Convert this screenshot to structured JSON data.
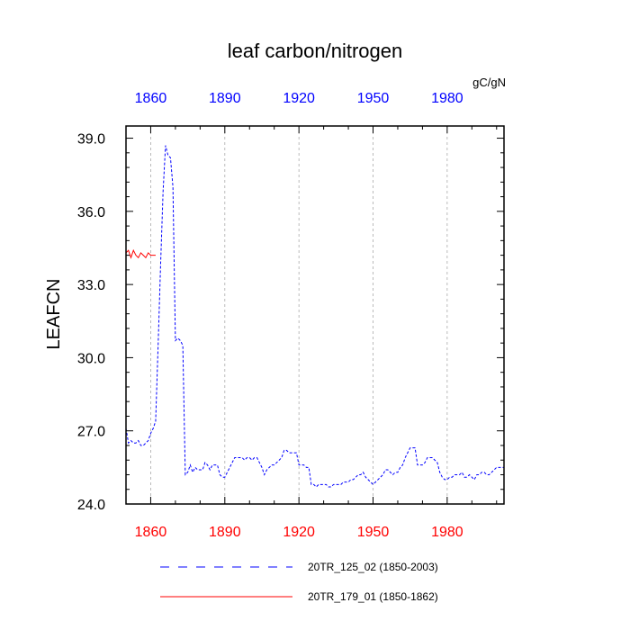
{
  "chart_data": {
    "type": "line",
    "title": "leaf carbon/nitrogen",
    "units": "gC/gN",
    "ylabel": "LEAFCN",
    "xlabel": "",
    "xlim": [
      1850,
      2003
    ],
    "ylim": [
      24.0,
      39.5
    ],
    "x_ticks": [
      1860,
      1890,
      1920,
      1950,
      1980
    ],
    "x_tick_labels": [
      "1860",
      "1890",
      "1920",
      "1950",
      "1980"
    ],
    "y_ticks": [
      24.0,
      27.0,
      30.0,
      33.0,
      36.0,
      39.0
    ],
    "y_tick_labels": [
      "24.0",
      "27.0",
      "30.0",
      "33.0",
      "36.0",
      "39.0"
    ],
    "grid": "vertical-dashed",
    "legend_position": "bottom",
    "series": [
      {
        "name": "20TR_125_02 (1850-2003)",
        "color": "#0000ff",
        "dash": "dashed",
        "x": [
          1850,
          1851,
          1852,
          1853,
          1854,
          1855,
          1856,
          1857,
          1858,
          1859,
          1860,
          1861,
          1862,
          1863,
          1864,
          1865,
          1866,
          1867,
          1868,
          1869,
          1870,
          1871,
          1872,
          1873,
          1874,
          1875,
          1876,
          1877,
          1878,
          1879,
          1880,
          1881,
          1882,
          1883,
          1884,
          1885,
          1886,
          1887,
          1888,
          1889,
          1890,
          1891,
          1892,
          1893,
          1894,
          1895,
          1896,
          1897,
          1898,
          1899,
          1900,
          1901,
          1902,
          1903,
          1904,
          1905,
          1906,
          1907,
          1908,
          1909,
          1910,
          1911,
          1912,
          1913,
          1914,
          1915,
          1916,
          1917,
          1918,
          1919,
          1920,
          1921,
          1922,
          1923,
          1924,
          1925,
          1926,
          1927,
          1928,
          1929,
          1930,
          1931,
          1932,
          1933,
          1934,
          1935,
          1936,
          1937,
          1938,
          1939,
          1940,
          1941,
          1942,
          1943,
          1944,
          1945,
          1946,
          1947,
          1948,
          1949,
          1950,
          1951,
          1952,
          1953,
          1954,
          1955,
          1956,
          1957,
          1958,
          1959,
          1960,
          1961,
          1962,
          1963,
          1964,
          1965,
          1966,
          1967,
          1968,
          1969,
          1970,
          1971,
          1972,
          1973,
          1974,
          1975,
          1976,
          1977,
          1978,
          1979,
          1980,
          1981,
          1982,
          1983,
          1984,
          1985,
          1986,
          1987,
          1988,
          1989,
          1990,
          1991,
          1992,
          1993,
          1994,
          1995,
          1996,
          1997,
          1998,
          1999,
          2000,
          2001,
          2002,
          2003
        ],
        "y": [
          27.1,
          26.5,
          26.6,
          26.5,
          26.5,
          26.6,
          26.4,
          26.4,
          26.5,
          26.6,
          26.9,
          27.1,
          27.4,
          30.5,
          33.8,
          36.8,
          38.7,
          38.3,
          38.2,
          37.0,
          30.7,
          30.8,
          30.7,
          30.5,
          25.2,
          25.3,
          25.6,
          25.3,
          25.5,
          25.4,
          25.4,
          25.4,
          25.7,
          25.6,
          25.4,
          25.6,
          25.6,
          25.6,
          25.2,
          25.1,
          25.1,
          25.3,
          25.5,
          25.7,
          25.9,
          25.9,
          25.9,
          25.9,
          25.8,
          25.9,
          25.9,
          25.8,
          25.9,
          25.9,
          25.7,
          25.5,
          25.2,
          25.4,
          25.5,
          25.6,
          25.6,
          25.7,
          25.8,
          25.9,
          26.2,
          26.2,
          26.1,
          26.1,
          26.1,
          26.1,
          25.6,
          25.6,
          25.6,
          25.5,
          25.5,
          24.8,
          24.8,
          24.7,
          24.8,
          24.8,
          24.8,
          24.8,
          24.7,
          24.7,
          24.8,
          24.8,
          24.8,
          24.8,
          24.9,
          24.9,
          24.9,
          25.0,
          25.0,
          25.1,
          25.2,
          25.2,
          25.3,
          25.1,
          25.0,
          24.9,
          24.8,
          24.9,
          25.0,
          25.1,
          25.2,
          25.4,
          25.4,
          25.3,
          25.2,
          25.3,
          25.3,
          25.5,
          25.6,
          25.9,
          26.1,
          26.3,
          26.3,
          26.3,
          25.6,
          25.6,
          25.6,
          25.7,
          25.9,
          25.9,
          25.9,
          25.8,
          25.7,
          25.3,
          25.1,
          25.0,
          25.0,
          25.1,
          25.1,
          25.2,
          25.2,
          25.2,
          25.3,
          25.1,
          25.1,
          25.2,
          25.1,
          25.0,
          25.2,
          25.2,
          25.3,
          25.3,
          25.2,
          25.2,
          25.3,
          25.4,
          25.5,
          25.5,
          25.5,
          25.5
        ]
      },
      {
        "name": "20TR_179_01 (1850-1862)",
        "color": "#ff0000",
        "dash": "solid",
        "x": [
          1850,
          1851,
          1852,
          1853,
          1854,
          1855,
          1856,
          1857,
          1858,
          1859,
          1860,
          1861,
          1862
        ],
        "y": [
          34.3,
          34.4,
          34.1,
          34.4,
          34.2,
          34.1,
          34.3,
          34.2,
          34.1,
          34.3,
          34.2,
          34.2,
          34.2
        ]
      }
    ]
  }
}
